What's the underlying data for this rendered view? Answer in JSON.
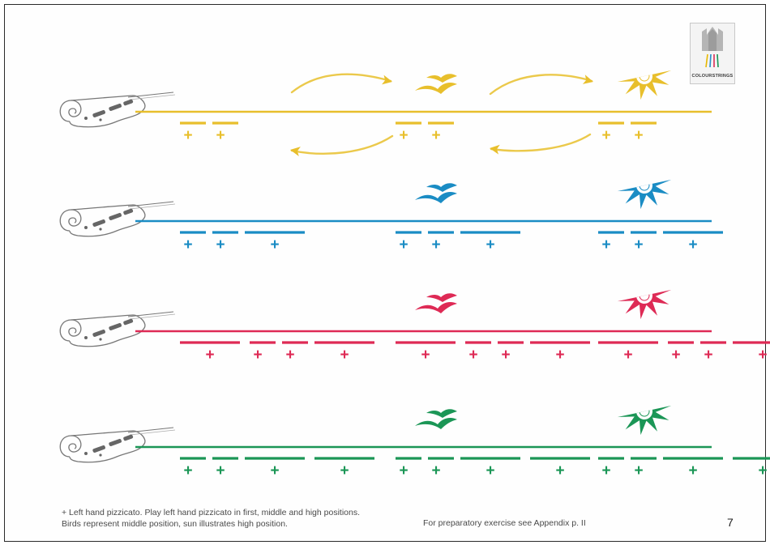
{
  "logo": {
    "text": "COLOURSTRINGS"
  },
  "footnote": {
    "line1": "+ Left hand pizzicato. Play left hand pizzicato in first, middle and high positions.",
    "line2": "Birds represent middle position, sun illustrates high position."
  },
  "preparatory_note": "For preparatory exercise see Appendix p. II",
  "page_number": "7",
  "pluck_symbol": "+",
  "colors": {
    "yellow": "#e8bf2c",
    "blue": "#1a8cc4",
    "red": "#de2a55",
    "green": "#1b9656",
    "scroll": "#777777"
  },
  "icons": [
    "violin-scroll-icon",
    "birds-icon",
    "sun-icon",
    "arrow-icon"
  ],
  "staves": [
    {
      "name": "yellow-staff",
      "color": "#e8bf2c",
      "groups": [
        [
          1,
          1
        ],
        [
          1,
          1
        ],
        [
          1,
          1
        ]
      ],
      "has_arrows": true
    },
    {
      "name": "blue-staff",
      "color": "#1a8cc4",
      "groups": [
        [
          1,
          1,
          2
        ],
        [
          1,
          1,
          2
        ],
        [
          1,
          1,
          2
        ]
      ],
      "has_arrows": false
    },
    {
      "name": "red-staff",
      "color": "#de2a55",
      "groups": [
        [
          2,
          1,
          1,
          2
        ],
        [
          2,
          1,
          1,
          2
        ],
        [
          2,
          1,
          1,
          2
        ]
      ],
      "has_arrows": false
    },
    {
      "name": "green-staff",
      "color": "#1b9656",
      "groups": [
        [
          1,
          1,
          2,
          2
        ],
        [
          1,
          1,
          2,
          2
        ],
        [
          1,
          1,
          2,
          2
        ]
      ],
      "has_arrows": false
    }
  ]
}
